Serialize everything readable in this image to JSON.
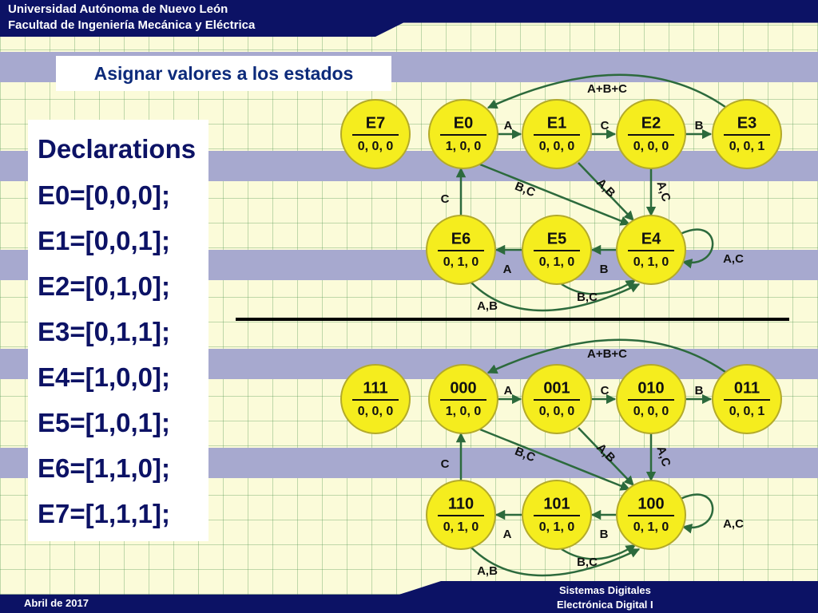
{
  "header": {
    "university": "Universidad Autónoma de Nuevo León",
    "faculty": "Facultad de Ingeniería Mecánica y Eléctrica"
  },
  "subtitle": "Asignar valores a los estados",
  "declarations": {
    "heading": "Declarations",
    "lines": [
      "E0=[0,0,0];",
      "E1=[0,0,1];",
      "E2=[0,1,0];",
      "E3=[0,1,1];",
      "E4=[1,0,0];",
      "E5=[1,0,1];",
      "E6=[1,1,0];",
      "E7=[1,1,1];"
    ]
  },
  "footer": {
    "date": "Abril de 2017",
    "course_line1": "Sistemas Digitales",
    "course_line2": "Electrónica Digital I"
  },
  "diagrams": [
    {
      "states": {
        "E7": {
          "name": "E7",
          "out": "0, 0, 0"
        },
        "E0": {
          "name": "E0",
          "out": "1, 0, 0"
        },
        "E1": {
          "name": "E1",
          "out": "0, 0, 0"
        },
        "E2": {
          "name": "E2",
          "out": "0, 0, 0"
        },
        "E3": {
          "name": "E3",
          "out": "0, 0, 1"
        },
        "E6": {
          "name": "E6",
          "out": "0, 1, 0"
        },
        "E5": {
          "name": "E5",
          "out": "0, 1, 0"
        },
        "E4": {
          "name": "E4",
          "out": "0, 1, 0"
        }
      },
      "transitions": {
        "t_E3_E0": "A+B+C",
        "t_E0_E1": "A",
        "t_E1_E2": "C",
        "t_E2_E3": "B",
        "t_E0_E4": "B,C",
        "t_E1_E4": "A,B",
        "t_E2_E4": "A,C",
        "t_E4_E4": "A,C",
        "t_E6_E0": "C",
        "t_E5_E6": "A",
        "t_E4_E5": "B",
        "t_E5_E4": "B,C",
        "t_E6_E4": "A,B"
      }
    },
    {
      "states": {
        "E7": {
          "name": "111",
          "out": "0, 0, 0"
        },
        "E0": {
          "name": "000",
          "out": "1, 0, 0"
        },
        "E1": {
          "name": "001",
          "out": "0, 0, 0"
        },
        "E2": {
          "name": "010",
          "out": "0, 0, 0"
        },
        "E3": {
          "name": "011",
          "out": "0, 0, 1"
        },
        "E6": {
          "name": "110",
          "out": "0, 1, 0"
        },
        "E5": {
          "name": "101",
          "out": "0, 1, 0"
        },
        "E4": {
          "name": "100",
          "out": "0, 1, 0"
        }
      },
      "transitions": {
        "t_E3_E0": "A+B+C",
        "t_E0_E1": "A",
        "t_E1_E2": "C",
        "t_E2_E3": "B",
        "t_E0_E4": "B,C",
        "t_E1_E4": "A,B",
        "t_E2_E4": "A,C",
        "t_E4_E4": "A,C",
        "t_E6_E0": "C",
        "t_E5_E6": "A",
        "t_E4_E5": "B",
        "t_E5_E4": "B,C",
        "t_E6_E4": "A,B"
      }
    }
  ],
  "colors": {
    "state_fill": "#f5ed1e",
    "edge": "#2c6a3c",
    "header_bg": "#0c1265",
    "band": "#a7a9cf",
    "background": "#fbfbd9",
    "title_text": "#0c2a7a"
  }
}
